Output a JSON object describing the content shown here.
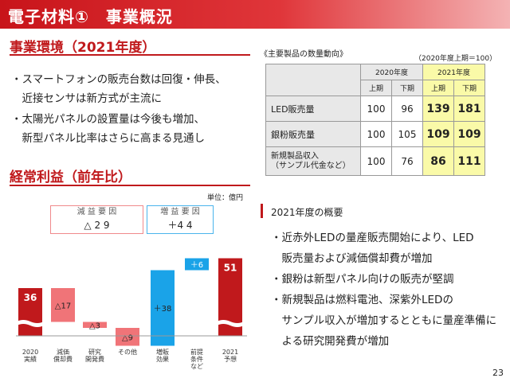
{
  "header": {
    "title": "電子材料①　事業概況"
  },
  "environment": {
    "title": "事業環境（2021年度）",
    "bullets": [
      {
        "line1": "・スマートフォンの販売台数は回復・伸長、",
        "line2": "　近接センサは新方式が主流に"
      },
      {
        "line1": "・太陽光パネルの設置量は今後も増加、",
        "line2": "　新型パネル比率はさらに高まる見通し"
      }
    ]
  },
  "table": {
    "caption": "《主要製品の数量動向》",
    "note": "（2020年度上期＝100）",
    "year_headers": [
      "2020年度",
      "2021年度"
    ],
    "half_headers": [
      "上期",
      "下期",
      "上期",
      "下期"
    ],
    "rows": [
      {
        "label": "LED販売量",
        "label2": "",
        "values": [
          "100",
          "96",
          "139",
          "181"
        ]
      },
      {
        "label": "銀粉販売量",
        "label2": "",
        "values": [
          "100",
          "105",
          "109",
          "109"
        ]
      },
      {
        "label": "新規製品収入",
        "label2": "（サンプル代金など）",
        "values": [
          "100",
          "76",
          "86",
          "111"
        ]
      }
    ]
  },
  "profit": {
    "title": "経常利益（前年比）",
    "unit": "単位：億円",
    "decrease_box": {
      "title": "減 益 要 因",
      "value": "△ 2 9"
    },
    "increase_box": {
      "title": "増 益 要 因",
      "value": "＋4 4"
    }
  },
  "chart_data": {
    "type": "bar",
    "subtype": "waterfall",
    "categories": [
      "2020\n実績",
      "減価\n償却費",
      "研究\n開発費",
      "その他",
      "増販\n効果",
      "前提\n条件\nなど",
      "2021\n予想"
    ],
    "values": [
      36,
      -17,
      -3,
      -9,
      38,
      6,
      51
    ],
    "labels": [
      "36",
      "△17",
      "△3",
      "△9",
      "＋38",
      "＋6",
      "51"
    ],
    "kinds": [
      "total",
      "decrease",
      "decrease",
      "decrease",
      "increase",
      "increase",
      "total"
    ],
    "colors": {
      "total": "#c0191c",
      "decrease": "#f07478",
      "increase": "#1aa3e8"
    },
    "axis_break": true
  },
  "overview": {
    "title": "2021年度の概要",
    "lines": [
      "・近赤外LEDの量産販売開始により、LED",
      "　販売量および減価償却費が増加",
      "・銀粉は新型パネル向けの販売が堅調",
      "・新規製品は燃料電池、深紫外LEDの",
      "　サンプル収入が増加するとともに量産準備に",
      "　よる研究開発費が増加"
    ]
  },
  "page_number": "23"
}
